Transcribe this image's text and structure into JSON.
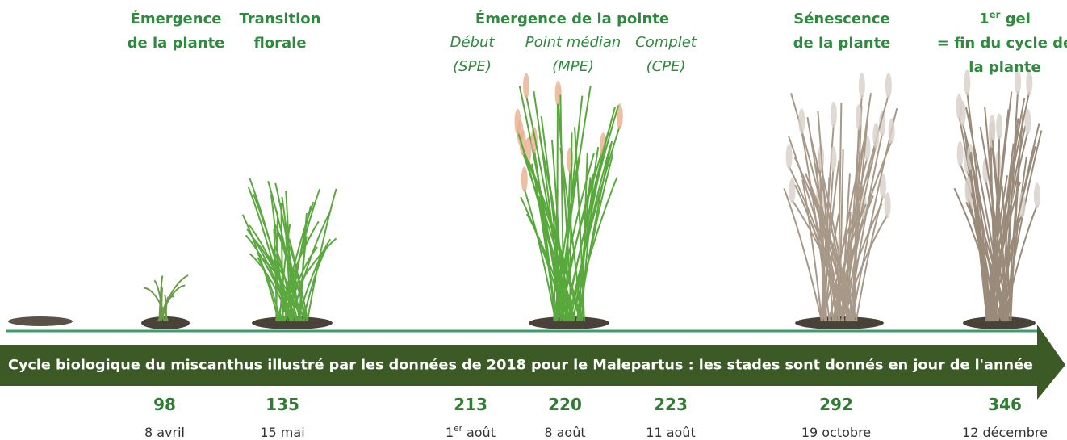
{
  "headings": [
    {
      "lines": [
        "Émergence",
        "de la plante"
      ]
    },
    {
      "lines": [
        "Transition",
        "florale"
      ]
    },
    {
      "lines": [
        "Émergence de la pointe"
      ]
    },
    {
      "lines": [
        "Sénescence",
        "de la plante"
      ]
    },
    {
      "lines": [
        {
          "main": "1",
          "sup": "er",
          "rest": " gel"
        },
        "= fin du cycle de",
        "la plante"
      ]
    }
  ],
  "substages": [
    {
      "lines": [
        "Début",
        "(SPE)"
      ]
    },
    {
      "lines": [
        "Point médian",
        "(MPE)"
      ]
    },
    {
      "lines": [
        "Complet",
        "(CPE)"
      ]
    }
  ],
  "banner": "Cycle biologique du miscanthus illustré par les données de 2018 pour le Malepartus : les stades sont donnés en jour de l'année",
  "stages": [
    {
      "day": 98,
      "date": "8 avril"
    },
    {
      "day": 135,
      "date": "15 mai"
    },
    {
      "day": 213,
      "date": {
        "main": "1",
        "sup": "er",
        "rest": " août"
      }
    },
    {
      "day": 220,
      "date": "8 août"
    },
    {
      "day": 223,
      "date": "11 août"
    },
    {
      "day": 292,
      "date": "19 octobre"
    },
    {
      "day": 346,
      "date": "12 décembre"
    }
  ]
}
